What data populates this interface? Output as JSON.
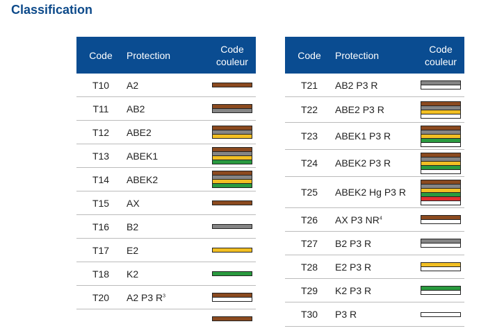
{
  "title": "Classification",
  "headers": {
    "code": "Code",
    "protection": "Protection",
    "color_code": "Code couleur"
  },
  "colors": {
    "brown": "#8b4a1f",
    "grey": "#858585",
    "yellow": "#f2bf23",
    "green": "#2a9a3f",
    "red": "#e03030",
    "white": "#ffffff",
    "header": "#0a4c91"
  },
  "left": [
    {
      "code": "T10",
      "protection": "A2",
      "sup": "",
      "stripes": [
        "brown"
      ]
    },
    {
      "code": "T11",
      "protection": "AB2",
      "sup": "",
      "stripes": [
        "brown",
        "grey"
      ]
    },
    {
      "code": "T12",
      "protection": "ABE2",
      "sup": "",
      "stripes": [
        "brown",
        "grey",
        "yellow"
      ]
    },
    {
      "code": "T13",
      "protection": "ABEK1",
      "sup": "",
      "stripes": [
        "brown",
        "grey",
        "yellow",
        "green"
      ]
    },
    {
      "code": "T14",
      "protection": "ABEK2",
      "sup": "",
      "stripes": [
        "brown",
        "grey",
        "yellow",
        "green"
      ]
    },
    {
      "code": "T15",
      "protection": "AX",
      "sup": "",
      "stripes": [
        "brown"
      ]
    },
    {
      "code": "T16",
      "protection": "B2",
      "sup": "",
      "stripes": [
        "grey"
      ]
    },
    {
      "code": "T17",
      "protection": "E2",
      "sup": "",
      "stripes": [
        "yellow"
      ]
    },
    {
      "code": "T18",
      "protection": "K2",
      "sup": "",
      "stripes": [
        "green"
      ]
    },
    {
      "code": "T20",
      "protection": "A2 P3 R",
      "sup": "3",
      "stripes": [
        "brown",
        "white"
      ]
    },
    {
      "code": "",
      "protection": "",
      "sup": "",
      "stripes": [
        "brown"
      ]
    }
  ],
  "right": [
    {
      "code": "T21",
      "protection": "AB2 P3 R",
      "sup": "",
      "stripes": [
        "grey",
        "white"
      ]
    },
    {
      "code": "T22",
      "protection": "ABE2 P3 R",
      "sup": "",
      "stripes": [
        "brown",
        "grey",
        "yellow",
        "white"
      ]
    },
    {
      "code": "T23",
      "protection": "ABEK1 P3 R",
      "sup": "",
      "stripes": [
        "brown",
        "grey",
        "yellow",
        "green",
        "white"
      ]
    },
    {
      "code": "T24",
      "protection": "ABEK2 P3 R",
      "sup": "",
      "stripes": [
        "brown",
        "grey",
        "yellow",
        "green",
        "white"
      ]
    },
    {
      "code": "T25",
      "protection": "ABEK2 Hg P3 R",
      "sup": "",
      "stripes": [
        "brown",
        "grey",
        "yellow",
        "green",
        "red",
        "white"
      ]
    },
    {
      "code": "T26",
      "protection": "AX P3 NR",
      "sup": "4",
      "stripes": [
        "brown",
        "white"
      ]
    },
    {
      "code": "T27",
      "protection": "B2 P3 R",
      "sup": "",
      "stripes": [
        "grey",
        "white"
      ]
    },
    {
      "code": "T28",
      "protection": "E2 P3 R",
      "sup": "",
      "stripes": [
        "yellow",
        "white"
      ]
    },
    {
      "code": "T29",
      "protection": "K2 P3 R",
      "sup": "",
      "stripes": [
        "green",
        "white"
      ]
    },
    {
      "code": "T30",
      "protection": "P3 R",
      "sup": "",
      "stripes": [
        "white"
      ]
    }
  ]
}
